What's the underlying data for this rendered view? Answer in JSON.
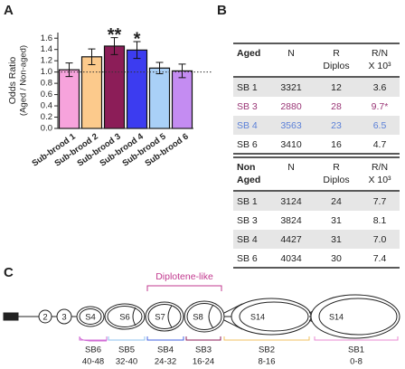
{
  "panel_labels": [
    "A",
    "B",
    "C"
  ],
  "chart_data": {
    "type": "bar",
    "ylabel": [
      "Odds Ratio",
      "(Aged / Non-aged)"
    ],
    "categories": [
      "Sub-brood 1",
      "Sub-brood 2",
      "Sub-brood 3",
      "Sub-brood 4",
      "Sub-brood 5",
      "Sub-brood 6"
    ],
    "values": [
      1.04,
      1.27,
      1.46,
      1.39,
      1.07,
      1.02
    ],
    "errors": [
      0.12,
      0.14,
      0.15,
      0.15,
      0.1,
      0.12
    ],
    "colors": [
      "#f7a3dc",
      "#fcca8c",
      "#8c1d58",
      "#3c3cf0",
      "#a9d0f7",
      "#c48cf2"
    ],
    "ylim": [
      0,
      1.7
    ],
    "yticks": [
      {
        "value": 0,
        "label": "0.0"
      },
      0.2,
      0.4,
      0.6,
      0.8,
      {
        "value": 1,
        "label": "1.0"
      },
      1.2,
      1.4,
      1.6
    ],
    "reference_line": 1,
    "annotations": [
      {
        "x": "Sub-brood 3",
        "text": "**"
      },
      {
        "x": "Sub-brood 4",
        "text": "*"
      }
    ]
  },
  "tables": [
    {
      "header": [
        [
          "Aged"
        ],
        [
          "N"
        ],
        [
          "R",
          "Diplos"
        ],
        [
          "R/N",
          "X 10³"
        ]
      ],
      "rows": [
        {
          "cells": [
            "SB 1",
            "3321",
            "12",
            "3.6"
          ],
          "color": "#222222"
        },
        {
          "cells": [
            "SB 3",
            "2880",
            "28",
            "9.7*"
          ],
          "color": "#9a3676"
        },
        {
          "cells": [
            "SB 4",
            "3563",
            "23",
            "6.5"
          ],
          "color": "#5b80d8"
        },
        {
          "cells": [
            "SB 6",
            "3410",
            "16",
            "4.7"
          ],
          "color": "#222222"
        }
      ]
    },
    {
      "header": [
        [
          "Non",
          "Aged"
        ],
        [
          "N"
        ],
        [
          "R",
          "Diplos"
        ],
        [
          "R/N",
          "X 10³"
        ]
      ],
      "rows": [
        {
          "cells": [
            "SB 1",
            "3124",
            "24",
            "7.7"
          ],
          "color": "#222222"
        },
        {
          "cells": [
            "SB 3",
            "3824",
            "31",
            "8.1"
          ],
          "color": "#222222"
        },
        {
          "cells": [
            "SB 4",
            "4427",
            "31",
            "7.0"
          ],
          "color": "#222222"
        },
        {
          "cells": [
            "SB 6",
            "4034",
            "30",
            "7.4"
          ],
          "color": "#222222"
        }
      ]
    }
  ],
  "diagram": {
    "title": "Diplotene-like",
    "chambers": [
      "2",
      "3",
      "S4",
      "S6",
      "S7",
      "S8",
      "S14",
      "S14"
    ],
    "groups": [
      {
        "label": "SB6",
        "range": "40-48"
      },
      {
        "label": "SB5",
        "range": "32-40"
      },
      {
        "label": "SB4",
        "range": "24-32"
      },
      {
        "label": "SB3",
        "range": "16-24"
      },
      {
        "label": "SB2",
        "range": "8-16"
      },
      {
        "label": "SB1",
        "range": "0-8"
      }
    ]
  }
}
